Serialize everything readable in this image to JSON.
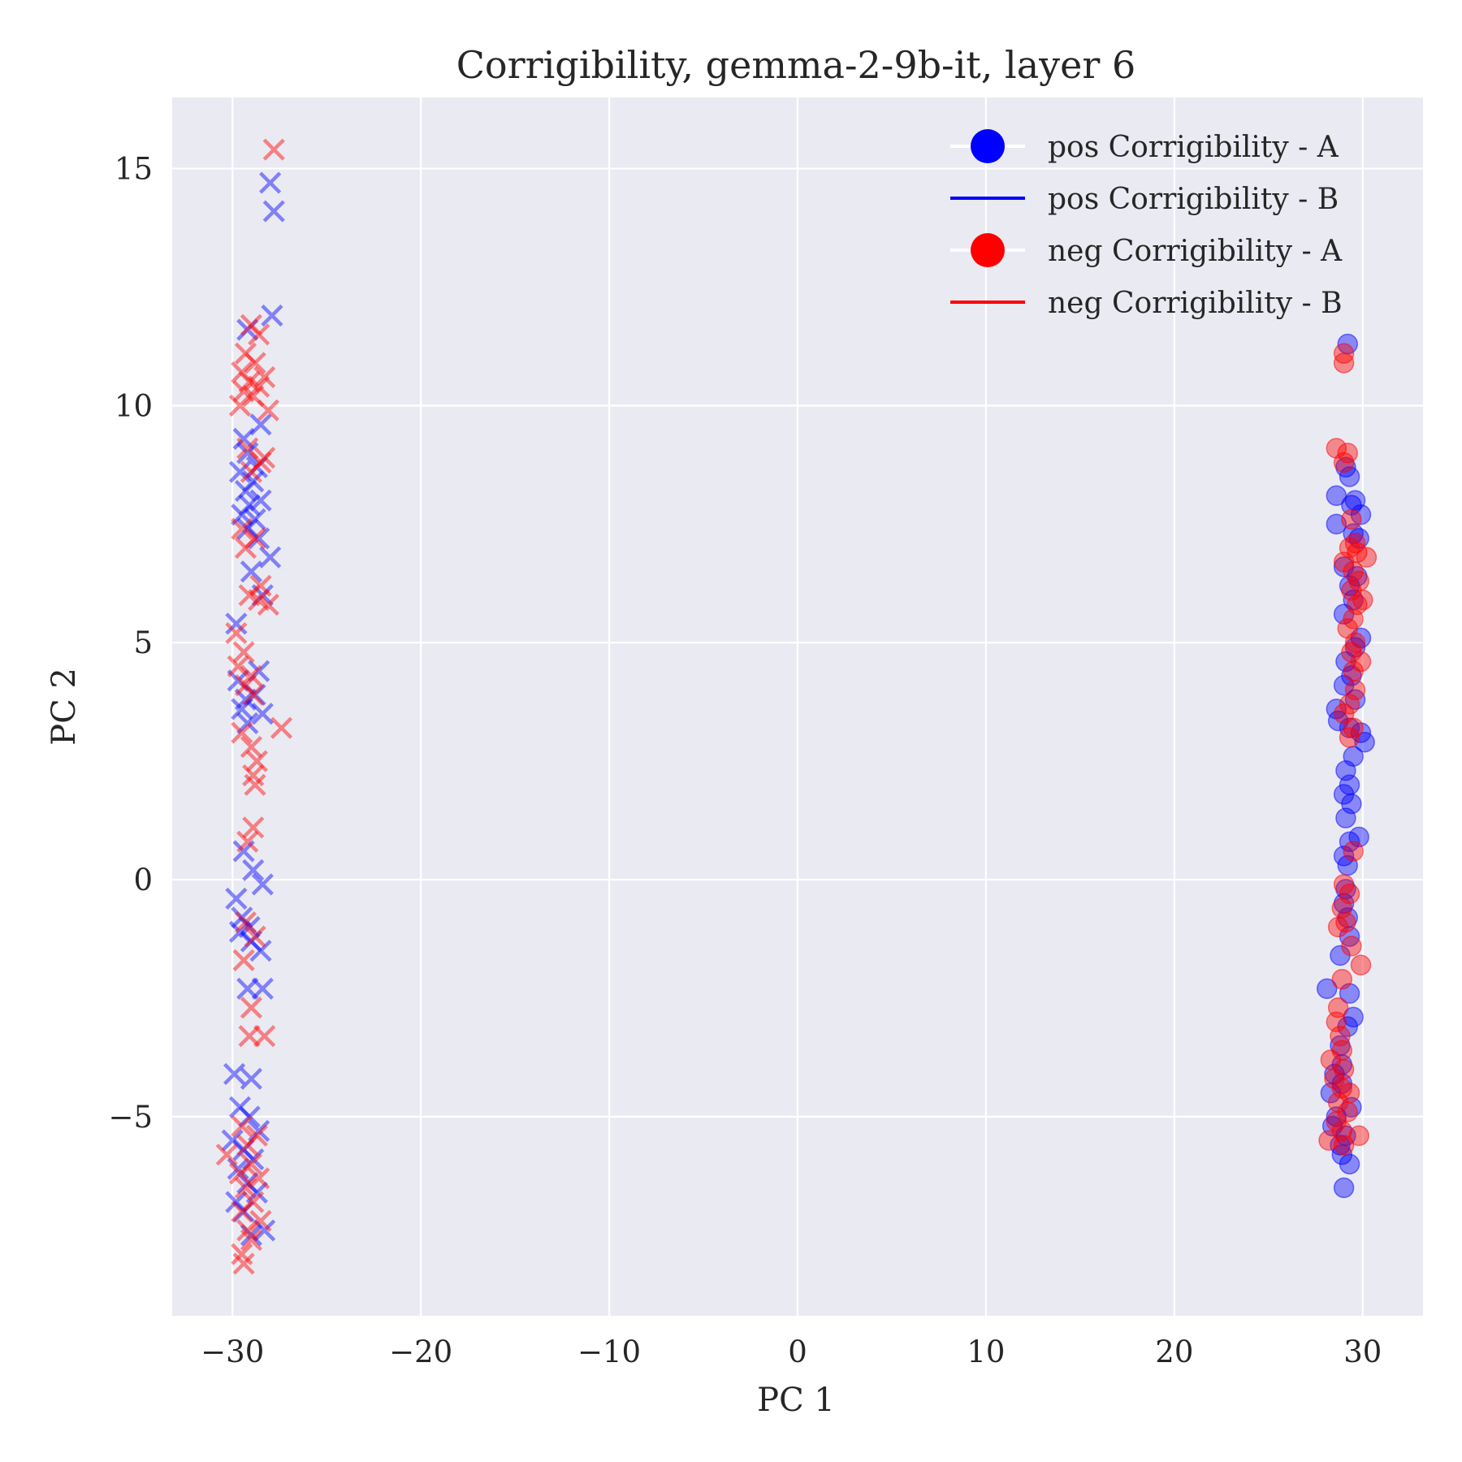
{
  "chart_data": {
    "type": "scatter",
    "title": "Corrigibility, gemma-2-9b-it, layer 6",
    "xlabel": "PC 1",
    "ylabel": "PC 2",
    "xlim": [
      -33.2,
      33.2
    ],
    "ylim": [
      -9.2,
      16.5
    ],
    "xticks": [
      -30,
      -20,
      -10,
      0,
      10,
      20,
      30
    ],
    "yticks": [
      -5,
      0,
      5,
      10,
      15
    ],
    "grid": true,
    "legend_position": "top-right",
    "colors": {
      "pos": "#0000ff",
      "neg": "#ff0000",
      "plot_background": "#eaeaf2",
      "grid": "#ffffff"
    },
    "legend": [
      {
        "label": "pos Corrigibility - A",
        "marker": "circle",
        "color": "#0000ff"
      },
      {
        "label": "pos Corrigibility - B",
        "marker": "line",
        "color": "#0000ff"
      },
      {
        "label": "neg Corrigibility - A",
        "marker": "circle",
        "color": "#ff0000"
      },
      {
        "label": "neg Corrigibility - B",
        "marker": "line",
        "color": "#ff0000"
      }
    ],
    "series": [
      {
        "name": "pos Corrigibility - A",
        "marker": "circle",
        "color": "#0000ff",
        "points": [
          [
            29.2,
            11.3
          ],
          [
            29.1,
            8.7
          ],
          [
            28.6,
            8.1
          ],
          [
            29.3,
            8.5
          ],
          [
            29.6,
            8.0
          ],
          [
            29.9,
            7.7
          ],
          [
            29.4,
            7.9
          ],
          [
            28.6,
            7.5
          ],
          [
            29.5,
            7.3
          ],
          [
            29.8,
            7.2
          ],
          [
            29.0,
            6.6
          ],
          [
            29.7,
            6.4
          ],
          [
            29.3,
            6.2
          ],
          [
            29.5,
            5.9
          ],
          [
            29.0,
            5.6
          ],
          [
            29.9,
            5.1
          ],
          [
            29.6,
            4.9
          ],
          [
            29.1,
            4.6
          ],
          [
            29.4,
            4.3
          ],
          [
            29.0,
            4.1
          ],
          [
            29.6,
            3.8
          ],
          [
            28.6,
            3.6
          ],
          [
            28.7,
            3.35
          ],
          [
            29.3,
            3.2
          ],
          [
            29.9,
            3.1
          ],
          [
            30.1,
            2.9
          ],
          [
            29.5,
            2.6
          ],
          [
            29.1,
            2.3
          ],
          [
            29.3,
            2.0
          ],
          [
            29.0,
            1.8
          ],
          [
            29.4,
            1.6
          ],
          [
            29.1,
            1.3
          ],
          [
            29.8,
            0.9
          ],
          [
            29.3,
            0.8
          ],
          [
            29.0,
            0.5
          ],
          [
            29.2,
            0.3
          ],
          [
            29.1,
            -0.2
          ],
          [
            29.0,
            -0.5
          ],
          [
            29.2,
            -0.8
          ],
          [
            29.3,
            -1.2
          ],
          [
            28.8,
            -1.6
          ],
          [
            28.1,
            -2.3
          ],
          [
            29.3,
            -2.4
          ],
          [
            29.5,
            -2.9
          ],
          [
            29.2,
            -3.1
          ],
          [
            28.8,
            -3.5
          ],
          [
            28.9,
            -3.9
          ],
          [
            28.5,
            -4.1
          ],
          [
            28.9,
            -4.3
          ],
          [
            28.3,
            -4.5
          ],
          [
            29.4,
            -4.8
          ],
          [
            28.6,
            -5.0
          ],
          [
            28.4,
            -5.2
          ],
          [
            29.1,
            -5.4
          ],
          [
            28.8,
            -5.6
          ],
          [
            28.9,
            -5.8
          ],
          [
            29.3,
            -6.0
          ],
          [
            29.0,
            -6.5
          ]
        ]
      },
      {
        "name": "neg Corrigibility - A",
        "marker": "circle",
        "color": "#ff0000",
        "points": [
          [
            29.0,
            11.1
          ],
          [
            29.0,
            10.9
          ],
          [
            28.6,
            9.1
          ],
          [
            29.2,
            9.0
          ],
          [
            29.0,
            8.8
          ],
          [
            29.4,
            7.6
          ],
          [
            29.6,
            7.1
          ],
          [
            29.3,
            7.0
          ],
          [
            29.7,
            6.9
          ],
          [
            29.0,
            6.7
          ],
          [
            30.2,
            6.8
          ],
          [
            29.5,
            6.5
          ],
          [
            29.8,
            6.3
          ],
          [
            29.4,
            6.1
          ],
          [
            29.7,
            5.8
          ],
          [
            30.0,
            5.9
          ],
          [
            29.5,
            5.5
          ],
          [
            29.2,
            5.3
          ],
          [
            29.6,
            5.0
          ],
          [
            29.4,
            4.8
          ],
          [
            29.9,
            4.6
          ],
          [
            29.5,
            4.4
          ],
          [
            29.6,
            4.0
          ],
          [
            29.3,
            3.7
          ],
          [
            29.0,
            3.5
          ],
          [
            29.5,
            3.2
          ],
          [
            29.3,
            3.0
          ],
          [
            29.5,
            0.6
          ],
          [
            29.0,
            -0.1
          ],
          [
            29.3,
            -0.3
          ],
          [
            28.9,
            -0.6
          ],
          [
            29.1,
            -0.9
          ],
          [
            28.7,
            -1.0
          ],
          [
            29.4,
            -1.4
          ],
          [
            29.9,
            -1.8
          ],
          [
            28.9,
            -2.1
          ],
          [
            28.7,
            -2.7
          ],
          [
            28.6,
            -3.0
          ],
          [
            28.8,
            -3.3
          ],
          [
            28.9,
            -3.6
          ],
          [
            28.3,
            -3.8
          ],
          [
            29.0,
            -4.0
          ],
          [
            28.5,
            -4.2
          ],
          [
            28.9,
            -4.4
          ],
          [
            29.3,
            -4.5
          ],
          [
            28.7,
            -4.7
          ],
          [
            29.2,
            -4.9
          ],
          [
            28.6,
            -5.1
          ],
          [
            28.9,
            -5.3
          ],
          [
            29.8,
            -5.4
          ],
          [
            28.2,
            -5.5
          ],
          [
            29.0,
            -5.6
          ]
        ]
      },
      {
        "name": "pos Corrigibility - B",
        "marker": "x",
        "color": "#0000ff",
        "points": [
          [
            -28.0,
            14.7
          ],
          [
            -27.8,
            14.1
          ],
          [
            -27.9,
            11.9
          ],
          [
            -29.2,
            11.6
          ],
          [
            -28.5,
            9.6
          ],
          [
            -29.4,
            9.3
          ],
          [
            -29.2,
            9.0
          ],
          [
            -28.7,
            8.7
          ],
          [
            -28.9,
            8.4
          ],
          [
            -29.6,
            8.6
          ],
          [
            -29.3,
            8.2
          ],
          [
            -28.5,
            8.0
          ],
          [
            -29.1,
            7.9
          ],
          [
            -29.5,
            7.7
          ],
          [
            -28.8,
            7.6
          ],
          [
            -29.2,
            7.4
          ],
          [
            -28.6,
            7.2
          ],
          [
            -28.0,
            6.8
          ],
          [
            -29.0,
            6.5
          ],
          [
            -28.4,
            6.0
          ],
          [
            -29.8,
            5.4
          ],
          [
            -28.6,
            4.4
          ],
          [
            -29.7,
            4.2
          ],
          [
            -28.8,
            3.9
          ],
          [
            -29.3,
            3.8
          ],
          [
            -29.5,
            3.6
          ],
          [
            -28.4,
            3.5
          ],
          [
            -29.2,
            3.3
          ],
          [
            -29.4,
            0.6
          ],
          [
            -28.9,
            0.2
          ],
          [
            -28.4,
            -0.1
          ],
          [
            -29.8,
            -0.4
          ],
          [
            -29.5,
            -0.8
          ],
          [
            -29.1,
            -1.0
          ],
          [
            -29.6,
            -1.1
          ],
          [
            -29.0,
            -1.3
          ],
          [
            -28.5,
            -1.5
          ],
          [
            -29.2,
            -2.3
          ],
          [
            -28.4,
            -2.3
          ],
          [
            -29.9,
            -4.1
          ],
          [
            -29.0,
            -4.2
          ],
          [
            -29.6,
            -4.8
          ],
          [
            -29.1,
            -5.0
          ],
          [
            -28.6,
            -5.3
          ],
          [
            -30.0,
            -5.5
          ],
          [
            -29.4,
            -5.7
          ],
          [
            -28.9,
            -5.9
          ],
          [
            -29.7,
            -6.1
          ],
          [
            -29.2,
            -6.4
          ],
          [
            -28.7,
            -6.6
          ],
          [
            -29.8,
            -6.8
          ],
          [
            -29.4,
            -7.0
          ],
          [
            -28.3,
            -7.4
          ],
          [
            -29.0,
            -7.5
          ]
        ]
      },
      {
        "name": "neg Corrigibility - B",
        "marker": "x",
        "color": "#ff0000",
        "points": [
          [
            -27.8,
            15.4
          ],
          [
            -29.0,
            11.7
          ],
          [
            -28.6,
            11.5
          ],
          [
            -29.3,
            11.1
          ],
          [
            -28.8,
            10.9
          ],
          [
            -29.5,
            10.7
          ],
          [
            -28.3,
            10.6
          ],
          [
            -29.1,
            10.5
          ],
          [
            -28.6,
            10.4
          ],
          [
            -29.4,
            10.3
          ],
          [
            -28.9,
            10.2
          ],
          [
            -29.6,
            10.0
          ],
          [
            -28.1,
            9.9
          ],
          [
            -29.2,
            9.1
          ],
          [
            -28.5,
            8.8
          ],
          [
            -29.0,
            8.6
          ],
          [
            -28.3,
            8.9
          ],
          [
            -29.5,
            7.4
          ],
          [
            -28.8,
            7.2
          ],
          [
            -29.3,
            7.0
          ],
          [
            -28.5,
            6.2
          ],
          [
            -29.1,
            6.0
          ],
          [
            -28.6,
            5.9
          ],
          [
            -28.1,
            5.8
          ],
          [
            -29.8,
            5.2
          ],
          [
            -29.4,
            4.8
          ],
          [
            -29.7,
            4.5
          ],
          [
            -29.0,
            4.3
          ],
          [
            -29.3,
            4.1
          ],
          [
            -28.9,
            3.9
          ],
          [
            -27.4,
            3.2
          ],
          [
            -29.5,
            3.1
          ],
          [
            -29.0,
            2.8
          ],
          [
            -28.7,
            2.5
          ],
          [
            -28.9,
            2.2
          ],
          [
            -28.8,
            2.0
          ],
          [
            -28.9,
            1.1
          ],
          [
            -29.2,
            0.8
          ],
          [
            -29.3,
            -0.9
          ],
          [
            -28.8,
            -1.2
          ],
          [
            -29.4,
            -1.7
          ],
          [
            -29.0,
            -2.7
          ],
          [
            -29.1,
            -3.3
          ],
          [
            -28.3,
            -3.3
          ],
          [
            -29.5,
            -5.2
          ],
          [
            -28.7,
            -5.4
          ],
          [
            -29.2,
            -5.6
          ],
          [
            -30.3,
            -5.8
          ],
          [
            -29.0,
            -6.0
          ],
          [
            -29.6,
            -6.2
          ],
          [
            -28.6,
            -6.3
          ],
          [
            -29.3,
            -6.5
          ],
          [
            -28.9,
            -6.8
          ],
          [
            -29.5,
            -7.0
          ],
          [
            -28.5,
            -7.2
          ],
          [
            -29.2,
            -7.4
          ],
          [
            -29.0,
            -7.6
          ],
          [
            -29.5,
            -7.9
          ],
          [
            -29.4,
            -8.1
          ]
        ]
      }
    ]
  }
}
